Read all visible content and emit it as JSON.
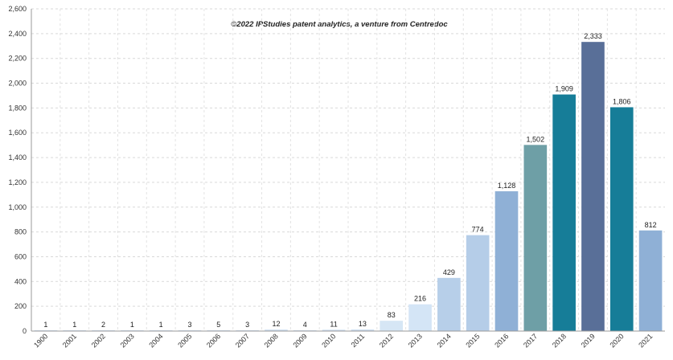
{
  "chart_data": {
    "type": "bar",
    "title": "",
    "subtitle": "©2022 IPStudies patent analytics, a venture from Centredoc",
    "xlabel": "",
    "ylabel": "",
    "ylim": [
      0,
      2600
    ],
    "y_ticks": [
      0,
      200,
      400,
      600,
      800,
      1000,
      1200,
      1400,
      1600,
      1800,
      2000,
      2200,
      2400,
      2600
    ],
    "y_tick_labels": [
      "0",
      "200",
      "400",
      "600",
      "800",
      "1,000",
      "1,200",
      "1,400",
      "1,600",
      "1,800",
      "2,000",
      "2,200",
      "2,400",
      "2,600"
    ],
    "grid": true,
    "legend": "none",
    "categories": [
      "1900",
      "2001",
      "2002",
      "2003",
      "2004",
      "2005",
      "2006",
      "2007",
      "2008",
      "2009",
      "2010",
      "2011",
      "2012",
      "2013",
      "2014",
      "2015",
      "2016",
      "2017",
      "2018",
      "2019",
      "2020",
      "2021"
    ],
    "values": [
      1,
      1,
      2,
      1,
      1,
      3,
      5,
      3,
      12,
      4,
      11,
      13,
      83,
      216,
      429,
      774,
      1128,
      1502,
      1909,
      2333,
      1806,
      812
    ],
    "value_labels": [
      "1",
      "1",
      "2",
      "1",
      "1",
      "3",
      "5",
      "3",
      "12",
      "4",
      "11",
      "13",
      "83",
      "216",
      "429",
      "774",
      "1,128",
      "1,502",
      "1,909",
      "2,333",
      "1,806",
      "812"
    ],
    "bar_colors": [
      "#cfe0f2",
      "#cfe0f2",
      "#cfe0f2",
      "#cfe0f2",
      "#cfe0f2",
      "#cfe0f2",
      "#cfe0f2",
      "#cfe0f2",
      "#cfe0f2",
      "#cfe0f2",
      "#cfe0f2",
      "#cfe0f2",
      "#d6e6f5",
      "#d4e5f6",
      "#b7cfe9",
      "#b5cde8",
      "#8fb0d6",
      "#6e9fa6",
      "#167d98",
      "#596f98",
      "#167d98",
      "#8fb0d6"
    ]
  }
}
